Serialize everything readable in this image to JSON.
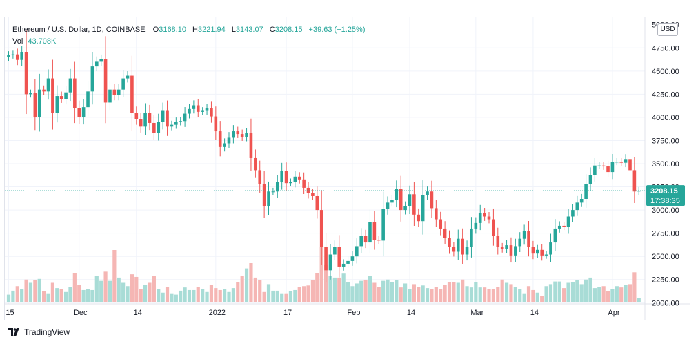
{
  "legend": {
    "symbol": "Ethereum / U.S. Dollar, 1D, COINBASE",
    "o_label": "O",
    "o_value": "3168.10",
    "h_label": "H",
    "h_value": "3221.94",
    "l_label": "L",
    "l_value": "3143.07",
    "c_label": "C",
    "c_value": "3208.15",
    "change": "+39.63 (+1.25%)",
    "vol_label": "Vol",
    "vol_value": "43.708K"
  },
  "currency_button": "USD",
  "footer": {
    "brand": "TradingView"
  },
  "colors": {
    "up": "#26a69a",
    "down": "#ef5350",
    "up_vol": "#a8dcd6",
    "down_vol": "#f5b6b4",
    "grid": "#f0f3fa"
  },
  "chart_data": {
    "type": "candlestick",
    "title": "Ethereum / U.S. Dollar, 1D, COINBASE",
    "ylim": [
      1950,
      5080
    ],
    "y_ticks": [
      "4750.00",
      "4500.00",
      "4250.00",
      "4000.00",
      "3750.00",
      "3500.00",
      "3250.00",
      "3000.00",
      "2750.00",
      "2500.00",
      "2250.00",
      "2000.00"
    ],
    "y_tick_values": [
      4750,
      4500,
      4250,
      4000,
      3750,
      3500,
      3250,
      3000,
      2750,
      2500,
      2250,
      2000
    ],
    "top_tick_partial": "5000.00",
    "x_ticks": [
      {
        "label": "15",
        "day": 0
      },
      {
        "label": "Dec",
        "day": 16
      },
      {
        "label": "14",
        "day": 29
      },
      {
        "label": "2022",
        "day": 47
      },
      {
        "label": "17",
        "day": 63
      },
      {
        "label": "Feb",
        "day": 78
      },
      {
        "label": "14",
        "day": 91
      },
      {
        "label": "Mar",
        "day": 106
      },
      {
        "label": "14",
        "day": 119
      },
      {
        "label": "Apr",
        "day": 137
      }
    ],
    "last_price": {
      "value": 3208.15,
      "label": "3208.15",
      "countdown": "17:38:35"
    },
    "closes": [
      4670,
      4680,
      4620,
      4700,
      4250,
      4260,
      4000,
      4300,
      4280,
      4420,
      4050,
      4230,
      4200,
      4270,
      4420,
      4100,
      4000,
      4110,
      4280,
      4550,
      4600,
      4630,
      4160,
      4300,
      4240,
      4300,
      4420,
      4450,
      4050,
      3980,
      3900,
      4050,
      3940,
      3830,
      3950,
      4070,
      3900,
      3920,
      3950,
      3960,
      4040,
      4090,
      4130,
      4060,
      4070,
      4100,
      4010,
      3850,
      3680,
      3720,
      3780,
      3850,
      3820,
      3790,
      3830,
      3560,
      3430,
      3280,
      3040,
      3200,
      3200,
      3300,
      3420,
      3290,
      3300,
      3360,
      3330,
      3240,
      3180,
      3150,
      3000,
      2600,
      2350,
      2520,
      2600,
      2390,
      2420,
      2450,
      2500,
      2610,
      2720,
      2650,
      2870,
      2680,
      2670,
      3010,
      3080,
      3110,
      3230,
      3000,
      3040,
      3170,
      2950,
      2880,
      3160,
      3200,
      3020,
      2900,
      2800,
      2700,
      2600,
      2550,
      2690,
      2520,
      2600,
      2800,
      2860,
      2970,
      2930,
      2900,
      2720,
      2600,
      2580,
      2620,
      2510,
      2610,
      2690,
      2770,
      2600,
      2530,
      2570,
      2510,
      2520,
      2650,
      2800,
      2830,
      2820,
      2930,
      3000,
      3080,
      3120,
      3280,
      3380,
      3480,
      3480,
      3470,
      3410,
      3520,
      3520,
      3510,
      3550,
      3430,
      3200,
      3208.15
    ],
    "volumes": [
      0.12,
      0.18,
      0.25,
      0.2,
      0.35,
      0.3,
      0.34,
      0.36,
      0.17,
      0.14,
      0.3,
      0.22,
      0.2,
      0.16,
      0.24,
      0.45,
      0.27,
      0.19,
      0.21,
      0.19,
      0.4,
      0.33,
      0.47,
      0.33,
      0.8,
      0.38,
      0.3,
      0.25,
      0.43,
      0.39,
      0.2,
      0.27,
      0.3,
      0.41,
      0.2,
      0.15,
      0.24,
      0.14,
      0.12,
      0.18,
      0.23,
      0.19,
      0.19,
      0.24,
      0.2,
      0.16,
      0.27,
      0.22,
      0.19,
      0.21,
      0.16,
      0.22,
      0.31,
      0.41,
      0.52,
      0.6,
      0.38,
      0.34,
      0.16,
      0.28,
      0.18,
      0.18,
      0.14,
      0.14,
      0.17,
      0.19,
      0.24,
      0.25,
      0.26,
      0.34,
      0.45,
      0.85,
      0.58,
      0.4,
      0.38,
      0.38,
      0.44,
      0.31,
      0.25,
      0.29,
      0.33,
      0.34,
      0.4,
      0.3,
      0.24,
      0.33,
      0.35,
      0.31,
      0.34,
      0.23,
      0.29,
      0.2,
      0.28,
      0.24,
      0.26,
      0.22,
      0.2,
      0.24,
      0.21,
      0.27,
      0.31,
      0.31,
      0.3,
      0.35,
      0.25,
      0.23,
      0.31,
      0.23,
      0.23,
      0.21,
      0.2,
      0.24,
      0.35,
      0.3,
      0.28,
      0.24,
      0.2,
      0.14,
      0.25,
      0.19,
      0.15,
      0.1,
      0.25,
      0.28,
      0.32,
      0.32,
      0.22,
      0.3,
      0.31,
      0.34,
      0.28,
      0.35,
      0.38,
      0.22,
      0.24,
      0.25,
      0.17,
      0.2,
      0.25,
      0.23,
      0.27,
      0.28,
      0.46,
      0.07
    ]
  }
}
